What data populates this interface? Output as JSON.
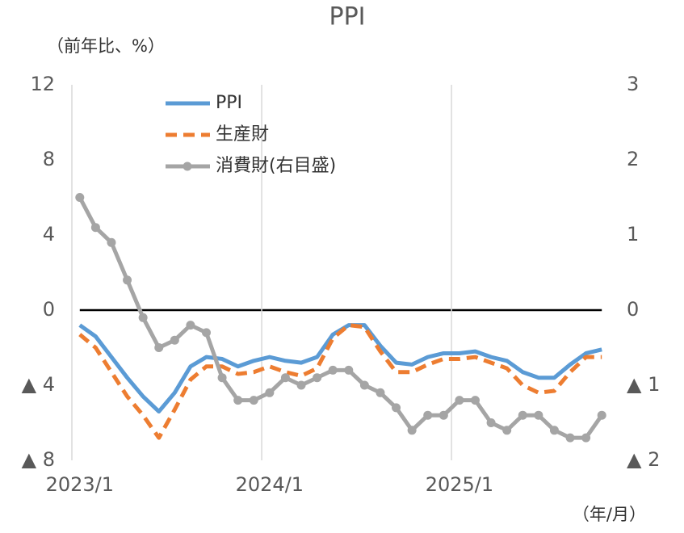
{
  "chart_data": {
    "type": "line",
    "title": "PPI",
    "y_label": "（前年比、%）",
    "x_label": "（年/月）",
    "categories": [
      "2023/1",
      null,
      null,
      null,
      null,
      null,
      null,
      null,
      null,
      null,
      null,
      null,
      "2024/1",
      null,
      null,
      null,
      null,
      null,
      null,
      null,
      null,
      null,
      null,
      null,
      "2025/1",
      null,
      null,
      null,
      null,
      null,
      null,
      null,
      null,
      null
    ],
    "series": [
      {
        "name": "PPI",
        "color": "#5b9bd5",
        "dash": false,
        "marker": false,
        "axis": "y",
        "values": [
          -0.8,
          -1.4,
          -2.5,
          -3.6,
          -4.6,
          -5.4,
          -4.4,
          -3.0,
          -2.5,
          -2.6,
          -3.0,
          -2.7,
          -2.5,
          -2.7,
          -2.8,
          -2.5,
          -1.3,
          -0.8,
          -0.8,
          -1.9,
          -2.8,
          -2.9,
          -2.5,
          -2.3,
          -2.3,
          -2.2,
          -2.5,
          -2.7,
          -3.3,
          -3.6,
          -3.6,
          -2.9,
          -2.3,
          -2.1
        ]
      },
      {
        "name": "生産財",
        "color": "#ed7d31",
        "dash": true,
        "marker": false,
        "axis": "y",
        "values": [
          -1.3,
          -2.0,
          -3.3,
          -4.6,
          -5.6,
          -6.8,
          -5.3,
          -3.7,
          -3.0,
          -3.0,
          -3.4,
          -3.3,
          -3.0,
          -3.3,
          -3.5,
          -3.1,
          -1.5,
          -0.8,
          -0.9,
          -2.2,
          -3.3,
          -3.3,
          -2.9,
          -2.6,
          -2.6,
          -2.5,
          -2.8,
          -3.1,
          -4.0,
          -4.4,
          -4.3,
          -3.3,
          -2.5,
          -2.5
        ]
      },
      {
        "name": "消費財(右目盛)",
        "color": "#a5a5a5",
        "dash": false,
        "marker": true,
        "axis": "y2",
        "values": [
          1.5,
          1.1,
          0.9,
          0.4,
          -0.1,
          -0.5,
          -0.4,
          -0.2,
          -0.3,
          -0.9,
          -1.2,
          -1.2,
          -1.1,
          -0.9,
          -1.0,
          -0.9,
          -0.8,
          -0.8,
          -1.0,
          -1.1,
          -1.3,
          -1.6,
          -1.4,
          -1.4,
          -1.2,
          -1.2,
          -1.5,
          -1.6,
          -1.4,
          -1.4,
          -1.6,
          -1.7,
          -1.7,
          -1.4
        ]
      }
    ],
    "ylim": [
      -8,
      12
    ],
    "yticks": [
      12,
      8,
      4,
      0,
      {
        "value": -4,
        "label": "▲ 4"
      },
      {
        "value": -8,
        "label": "▲ 8"
      }
    ],
    "y2lim": [
      -2,
      3
    ],
    "y2ticks": [
      3,
      2,
      1,
      0,
      {
        "value": -1,
        "label": "▲ 1"
      },
      {
        "value": -2,
        "label": "▲ 2"
      }
    ],
    "grid": true,
    "legend": "top-left"
  }
}
